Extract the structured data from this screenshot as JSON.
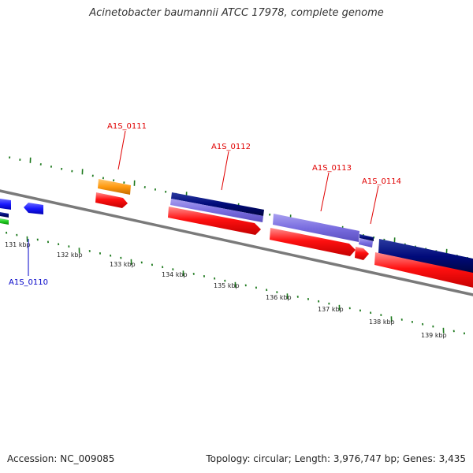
{
  "title": "Acinetobacter baumannii ATCC 17978, complete genome",
  "colors": {
    "backbone": "#7a7a7a",
    "ticks": "#1f7a1f",
    "forward_label": "#e00000",
    "reverse_label": "#0000c8",
    "red_gene": "#ff1010",
    "navy_gene": "#000a7a",
    "lavender_gene": "#7a6ee0",
    "blue_gene": "#1a1aff",
    "orange_gene": "#ff9a10",
    "green_gene": "#22cc22"
  },
  "kbp_labels": [
    "131 kbp",
    "132 kbp",
    "133 kbp",
    "134 kbp",
    "135 kbp",
    "136 kbp",
    "137 kbp",
    "138 kbp",
    "139 kbp"
  ],
  "gene_labels": [
    {
      "name": "A1S_0110",
      "strand": "reverse"
    },
    {
      "name": "A1S_0111",
      "strand": "forward"
    },
    {
      "name": "A1S_0112",
      "strand": "forward"
    },
    {
      "name": "A1S_0113",
      "strand": "forward"
    },
    {
      "name": "A1S_0114",
      "strand": "forward"
    }
  ],
  "footer": {
    "accession": "Accession: NC_009085",
    "topology": "Topology: circular;",
    "length": "Length: 3,976,747 bp;",
    "genes": "Genes: 3,435"
  }
}
